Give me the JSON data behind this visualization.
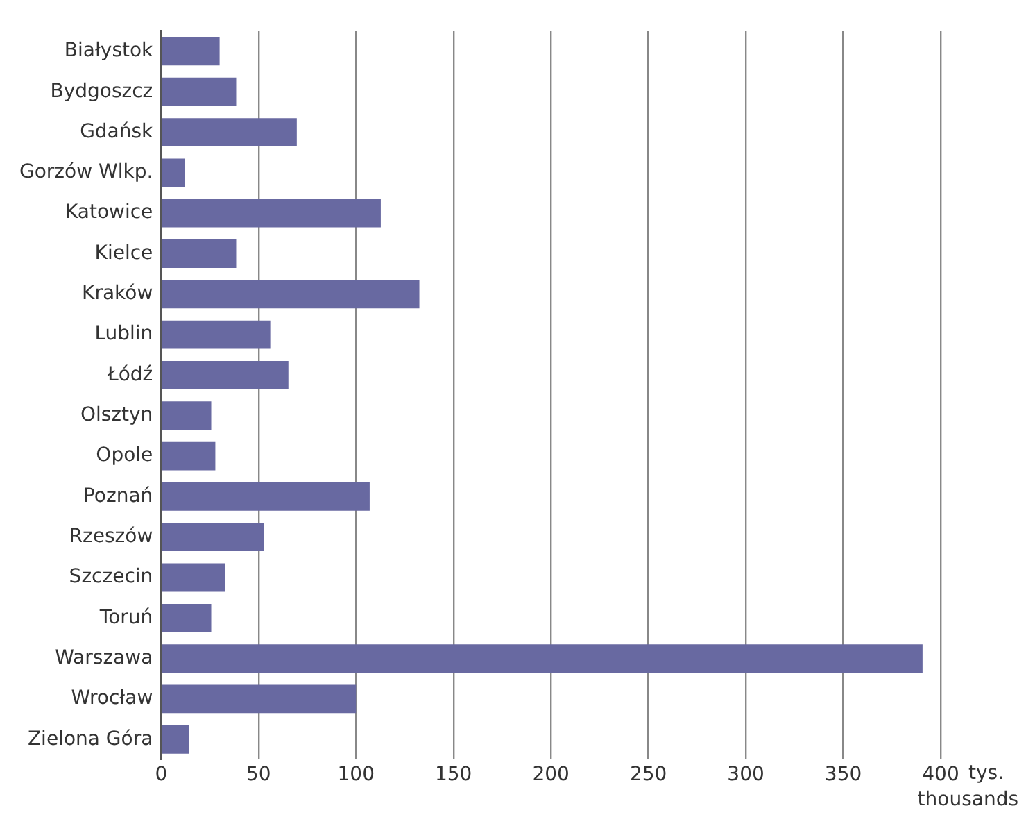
{
  "chart_data": {
    "type": "bar",
    "orientation": "horizontal",
    "xlabel": "tys.\nthousands",
    "categories": [
      "Białystok",
      "Bydgoszcz",
      "Gdańsk",
      "Gorzów Wlkp.",
      "Katowice",
      "Kielce",
      "Kraków",
      "Lublin",
      "Łódź",
      "Olsztyn",
      "Opole",
      "Poznań",
      "Rzeszów",
      "Szczecin",
      "Toruń",
      "Warszawa",
      "Wrocław",
      "Zielona Góra"
    ],
    "values": [
      30,
      38.5,
      69.6,
      12.3,
      112.7,
      38.5,
      132.5,
      56,
      65.3,
      25.7,
      27.8,
      107,
      52.6,
      32.8,
      25.7,
      390.7,
      100,
      14.4
    ],
    "color": "#6869a1",
    "xlim": [
      0,
      400
    ],
    "xticks": [
      0,
      50,
      100,
      150,
      200,
      250,
      300,
      350,
      400
    ],
    "grid": "x",
    "legend": false
  }
}
